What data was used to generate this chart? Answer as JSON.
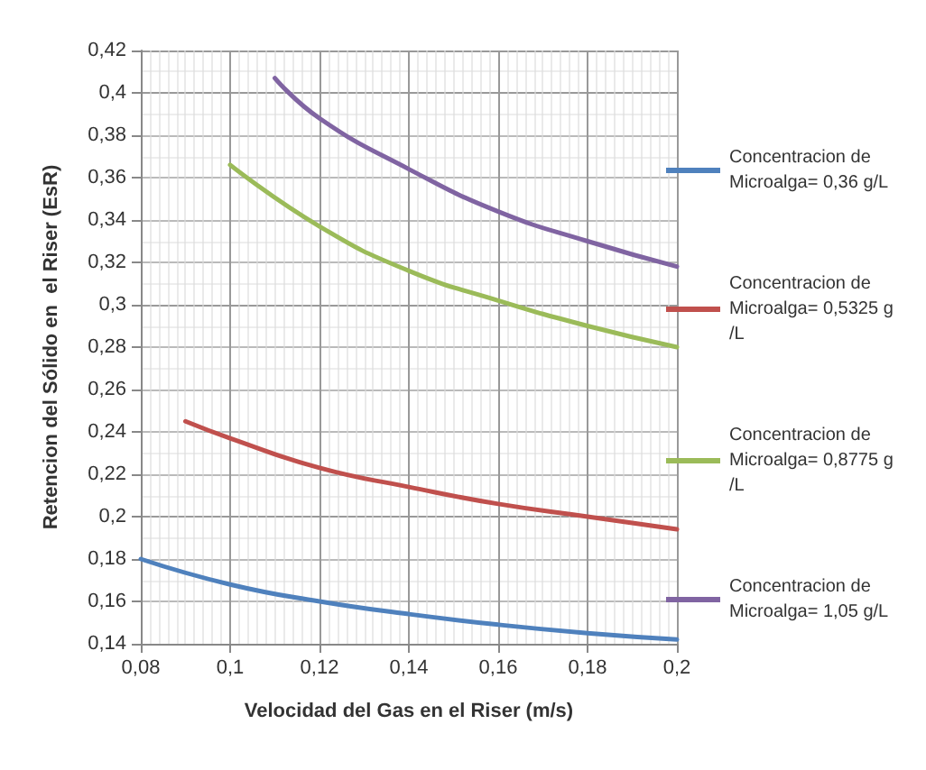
{
  "chart_data": {
    "type": "line",
    "xlabel": "Velocidad del Gas en el Riser (m/s)",
    "ylabel": "Retencion del Sólido en  el Riser (EsR)",
    "xlim": [
      0.08,
      0.2
    ],
    "xticks": [
      {
        "value": 0.08,
        "label": "0,08"
      },
      {
        "value": 0.1,
        "label": "0,1"
      },
      {
        "value": 0.12,
        "label": "0,12"
      },
      {
        "value": 0.14,
        "label": "0,14"
      },
      {
        "value": 0.16,
        "label": "0,16"
      },
      {
        "value": 0.18,
        "label": "0,18"
      },
      {
        "value": 0.2,
        "label": "0,2"
      }
    ],
    "ylim": [
      0.14,
      0.42
    ],
    "yticks": [
      {
        "value": 0.14,
        "label": "0,14"
      },
      {
        "value": 0.16,
        "label": "0,16"
      },
      {
        "value": 0.18,
        "label": "0,18"
      },
      {
        "value": 0.2,
        "label": "0,2"
      },
      {
        "value": 0.22,
        "label": "0,22"
      },
      {
        "value": 0.24,
        "label": "0,24"
      },
      {
        "value": 0.26,
        "label": "0,26"
      },
      {
        "value": 0.28,
        "label": "0,28"
      },
      {
        "value": 0.3,
        "label": "0,3"
      },
      {
        "value": 0.32,
        "label": "0,32"
      },
      {
        "value": 0.34,
        "label": "0,34"
      },
      {
        "value": 0.36,
        "label": "0,36"
      },
      {
        "value": 0.38,
        "label": "0,38"
      },
      {
        "value": 0.4,
        "label": "0,4"
      },
      {
        "value": 0.42,
        "label": "0,42"
      }
    ],
    "grid": true,
    "legend": "right",
    "marker": "none",
    "line_style": "solid",
    "series": [
      {
        "name": "Concentracion de Microalga= 0,36 g/L",
        "color": "#4f81bd",
        "x": [
          0.08,
          0.1,
          0.12,
          0.14,
          0.16,
          0.18,
          0.2
        ],
        "values": [
          0.18,
          0.168,
          0.16,
          0.154,
          0.149,
          0.145,
          0.142
        ]
      },
      {
        "name": "Concentracion de Microalga= 0,5325 g/L",
        "color": "#c0504d",
        "x": [
          0.09,
          0.1,
          0.12,
          0.14,
          0.16,
          0.18,
          0.2
        ],
        "values": [
          0.245,
          0.237,
          0.223,
          0.214,
          0.206,
          0.2,
          0.194
        ]
      },
      {
        "name": "Concentracion de Microalga= 0,8775 g/L",
        "color": "#9bbb59",
        "x": [
          0.1,
          0.12,
          0.14,
          0.16,
          0.18,
          0.2
        ],
        "values": [
          0.366,
          0.337,
          0.316,
          0.302,
          0.29,
          0.28
        ]
      },
      {
        "name": "Concentracion de Microalga= 1,05 g/L",
        "color": "#8064a2",
        "x": [
          0.11,
          0.12,
          0.14,
          0.16,
          0.18,
          0.2
        ],
        "values": [
          0.407,
          0.388,
          0.364,
          0.344,
          0.33,
          0.318
        ]
      }
    ]
  }
}
